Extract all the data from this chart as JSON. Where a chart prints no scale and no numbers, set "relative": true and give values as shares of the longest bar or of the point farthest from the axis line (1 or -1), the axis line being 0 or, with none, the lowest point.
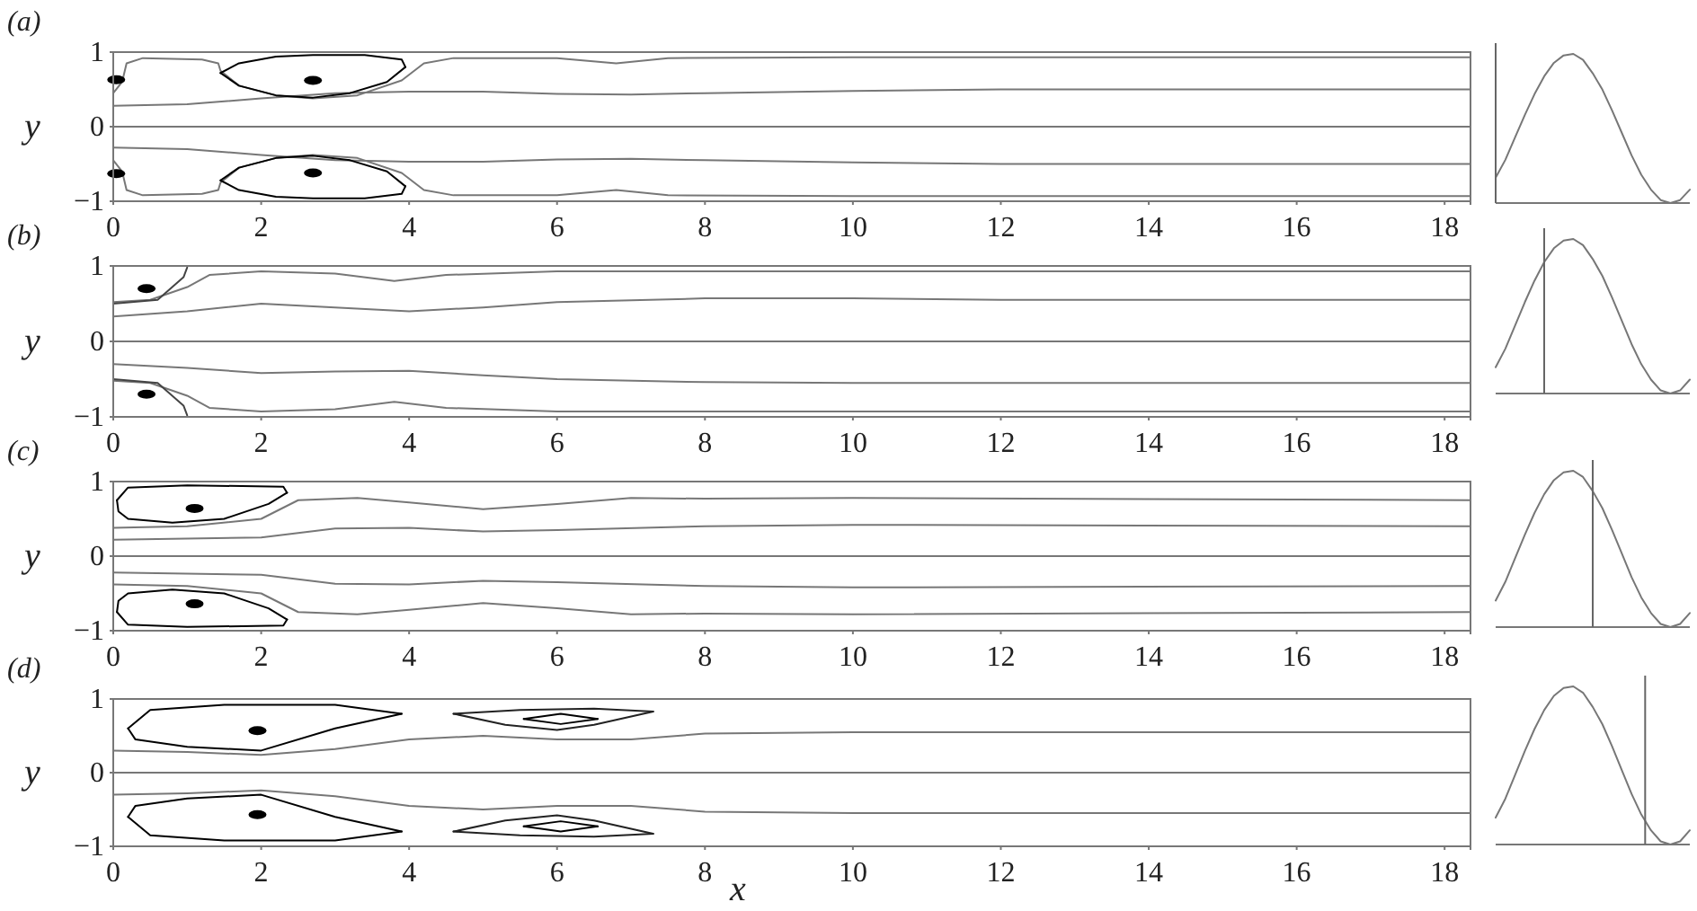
{
  "chart_data": [
    {
      "type": "line",
      "title": "(a)",
      "ylabel": "y",
      "xlim": [
        0,
        18.35
      ],
      "ylim": [
        -1,
        1
      ],
      "xticks": [
        0,
        2,
        4,
        6,
        8,
        10,
        12,
        14,
        16,
        18
      ],
      "yticks": [
        -1,
        0,
        1
      ],
      "series": [
        {
          "color": "#777777",
          "x": [
            0,
            18.35
          ],
          "values": [
            0,
            0
          ]
        },
        {
          "color": "#777777",
          "x": [
            0,
            1,
            2,
            3,
            4,
            5,
            6,
            7,
            8,
            10,
            12,
            14,
            18.35
          ],
          "values": [
            0.28,
            0.3,
            0.38,
            0.45,
            0.47,
            0.47,
            0.44,
            0.43,
            0.45,
            0.48,
            0.5,
            0.5,
            0.5
          ]
        },
        {
          "color": "#777777",
          "x": [
            0,
            1,
            2,
            3,
            4,
            5,
            6,
            7,
            8,
            10,
            12,
            14,
            18.35
          ],
          "values": [
            -0.28,
            -0.3,
            -0.38,
            -0.45,
            -0.47,
            -0.47,
            -0.44,
            -0.43,
            -0.45,
            -0.48,
            -0.5,
            -0.5,
            -0.5
          ]
        },
        {
          "color": "#777777",
          "x": [
            0,
            0.12,
            0.18,
            0.4,
            1.2,
            1.42,
            1.45,
            1.7,
            2.2,
            2.7,
            3.3,
            3.9,
            4.2,
            4.6,
            6,
            6.8,
            7.5,
            10,
            18.35
          ],
          "values": [
            0.45,
            0.6,
            0.85,
            0.92,
            0.9,
            0.85,
            0.75,
            0.55,
            0.42,
            0.38,
            0.42,
            0.62,
            0.85,
            0.92,
            0.92,
            0.85,
            0.92,
            0.93,
            0.93
          ]
        },
        {
          "color": "#777777",
          "x": [
            0,
            0.12,
            0.18,
            0.4,
            1.2,
            1.42,
            1.45,
            1.7,
            2.2,
            2.7,
            3.3,
            3.9,
            4.2,
            4.6,
            6,
            6.8,
            7.5,
            10,
            18.35
          ],
          "values": [
            -0.45,
            -0.6,
            -0.85,
            -0.92,
            -0.9,
            -0.85,
            -0.75,
            -0.55,
            -0.42,
            -0.38,
            -0.42,
            -0.62,
            -0.85,
            -0.92,
            -0.92,
            -0.85,
            -0.92,
            -0.93,
            -0.93
          ]
        },
        {
          "color": "#000000",
          "x": [
            1.45,
            1.7,
            2.2,
            2.7,
            3.4,
            3.9,
            3.95
          ],
          "values": [
            0.72,
            0.85,
            0.94,
            0.96,
            0.96,
            0.9,
            0.8
          ]
        },
        {
          "color": "#000000",
          "x": [
            1.45,
            1.7,
            2.2,
            2.7,
            3.2,
            3.7,
            3.95
          ],
          "values": [
            0.72,
            0.55,
            0.42,
            0.39,
            0.45,
            0.6,
            0.8
          ]
        },
        {
          "color": "#000000",
          "x": [
            1.45,
            1.7,
            2.2,
            2.7,
            3.4,
            3.9,
            3.95
          ],
          "values": [
            -0.72,
            -0.85,
            -0.94,
            -0.96,
            -0.96,
            -0.9,
            -0.8
          ]
        },
        {
          "color": "#000000",
          "x": [
            1.45,
            1.7,
            2.2,
            2.7,
            3.2,
            3.7,
            3.95
          ],
          "values": [
            -0.72,
            -0.55,
            -0.42,
            -0.39,
            -0.45,
            -0.6,
            -0.8
          ]
        },
        {
          "type": "scatter",
          "color": "#000000",
          "x": [
            2.7,
            2.7,
            0.04,
            0.04
          ],
          "values": [
            0.62,
            -0.62,
            0.63,
            -0.63
          ]
        }
      ]
    },
    {
      "type": "line",
      "title": "(b)",
      "ylabel": "y",
      "xlim": [
        0,
        18.35
      ],
      "ylim": [
        -1,
        1
      ],
      "xticks": [
        0,
        2,
        4,
        6,
        8,
        10,
        12,
        14,
        16,
        18
      ],
      "yticks": [
        -1,
        0,
        1
      ],
      "series": [
        {
          "color": "#777777",
          "x": [
            0,
            18.35
          ],
          "values": [
            0,
            0
          ]
        },
        {
          "color": "#777777",
          "x": [
            0,
            1,
            2,
            3,
            4,
            5,
            6,
            8,
            10,
            12,
            18.35
          ],
          "values": [
            0.33,
            0.4,
            0.5,
            0.45,
            0.4,
            0.45,
            0.52,
            0.57,
            0.57,
            0.55,
            0.55
          ]
        },
        {
          "color": "#777777",
          "x": [
            0,
            1,
            2,
            3,
            4,
            5,
            6,
            8,
            10,
            12,
            18.35
          ],
          "values": [
            -0.3,
            -0.35,
            -0.42,
            -0.4,
            -0.39,
            -0.45,
            -0.5,
            -0.54,
            -0.55,
            -0.55,
            -0.55
          ]
        },
        {
          "color": "#777777",
          "x": [
            0,
            0.5,
            1,
            1.3,
            2,
            3,
            3.8,
            4.5,
            6,
            18.35
          ],
          "values": [
            0.52,
            0.55,
            0.72,
            0.88,
            0.93,
            0.9,
            0.8,
            0.88,
            0.93,
            0.93
          ]
        },
        {
          "color": "#777777",
          "x": [
            0,
            0.5,
            1,
            1.3,
            2,
            3,
            3.8,
            4.5,
            6,
            18.35
          ],
          "values": [
            -0.52,
            -0.55,
            -0.72,
            -0.88,
            -0.93,
            -0.9,
            -0.8,
            -0.88,
            -0.93,
            -0.93
          ]
        },
        {
          "color": "#444444",
          "x": [
            0,
            0.6,
            0.95,
            1
          ],
          "values": [
            0.5,
            0.55,
            0.85,
            0.98
          ]
        },
        {
          "color": "#444444",
          "x": [
            0,
            0.6,
            0.95,
            1
          ],
          "values": [
            -0.5,
            -0.55,
            -0.85,
            -0.98
          ]
        },
        {
          "type": "scatter",
          "color": "#000000",
          "x": [
            0.45,
            0.45
          ],
          "values": [
            0.7,
            -0.7
          ]
        }
      ]
    },
    {
      "type": "line",
      "title": "(c)",
      "ylabel": "y",
      "xlim": [
        0,
        18.35
      ],
      "ylim": [
        -1,
        1
      ],
      "xticks": [
        0,
        2,
        4,
        6,
        8,
        10,
        12,
        14,
        16,
        18
      ],
      "yticks": [
        -1,
        0,
        1
      ],
      "series": [
        {
          "color": "#777777",
          "x": [
            0,
            18.35
          ],
          "values": [
            0,
            0
          ]
        },
        {
          "color": "#777777",
          "x": [
            0,
            2,
            3,
            4,
            5,
            6,
            8,
            10,
            18.35
          ],
          "values": [
            0.22,
            0.25,
            0.37,
            0.38,
            0.33,
            0.35,
            0.4,
            0.42,
            0.4
          ]
        },
        {
          "color": "#777777",
          "x": [
            0,
            2,
            3,
            4,
            5,
            6,
            8,
            10,
            18.35
          ],
          "values": [
            -0.22,
            -0.25,
            -0.37,
            -0.38,
            -0.33,
            -0.35,
            -0.4,
            -0.42,
            -0.4
          ]
        },
        {
          "color": "#777777",
          "x": [
            0,
            1,
            2,
            2.5,
            3.3,
            4,
            5,
            6,
            7,
            8,
            10,
            18.35
          ],
          "values": [
            0.38,
            0.4,
            0.5,
            0.75,
            0.78,
            0.72,
            0.63,
            0.7,
            0.78,
            0.77,
            0.78,
            0.75
          ]
        },
        {
          "color": "#777777",
          "x": [
            0,
            1,
            2,
            2.5,
            3.3,
            4,
            5,
            6,
            7,
            8,
            10,
            18.35
          ],
          "values": [
            -0.38,
            -0.4,
            -0.5,
            -0.75,
            -0.78,
            -0.72,
            -0.63,
            -0.7,
            -0.78,
            -0.77,
            -0.78,
            -0.75
          ]
        },
        {
          "color": "#000000",
          "x": [
            0.05,
            0.2,
            1,
            2.3,
            2.35
          ],
          "values": [
            0.75,
            0.92,
            0.95,
            0.93,
            0.85
          ]
        },
        {
          "color": "#000000",
          "x": [
            0.05,
            0.07,
            0.2,
            0.8,
            1.5,
            2.1,
            2.35
          ],
          "values": [
            0.75,
            0.6,
            0.5,
            0.45,
            0.5,
            0.7,
            0.85
          ]
        },
        {
          "color": "#000000",
          "x": [
            0.05,
            0.2,
            1,
            2.3,
            2.35
          ],
          "values": [
            -0.75,
            -0.92,
            -0.95,
            -0.93,
            -0.85
          ]
        },
        {
          "color": "#000000",
          "x": [
            0.05,
            0.07,
            0.2,
            0.8,
            1.5,
            2.1,
            2.35
          ],
          "values": [
            -0.75,
            -0.6,
            -0.5,
            -0.45,
            -0.5,
            -0.7,
            -0.85
          ]
        },
        {
          "type": "scatter",
          "color": "#000000",
          "x": [
            1.1,
            1.1
          ],
          "values": [
            0.64,
            -0.64
          ]
        }
      ]
    },
    {
      "type": "line",
      "title": "(d)",
      "xlabel": "x",
      "ylabel": "y",
      "xlim": [
        0,
        18.35
      ],
      "ylim": [
        -1,
        1
      ],
      "xticks": [
        0,
        2,
        4,
        6,
        8,
        10,
        12,
        14,
        16,
        18
      ],
      "yticks": [
        -1,
        0,
        1
      ],
      "series": [
        {
          "color": "#777777",
          "x": [
            0,
            18.35
          ],
          "values": [
            0,
            0
          ]
        },
        {
          "color": "#777777",
          "x": [
            0,
            1,
            2,
            3,
            4,
            5,
            6,
            7,
            8,
            10,
            18.35
          ],
          "values": [
            0.3,
            0.28,
            0.24,
            0.32,
            0.45,
            0.5,
            0.45,
            0.45,
            0.53,
            0.55,
            0.55
          ]
        },
        {
          "color": "#777777",
          "x": [
            0,
            1,
            2,
            3,
            4,
            5,
            6,
            7,
            8,
            10,
            18.35
          ],
          "values": [
            -0.3,
            -0.28,
            -0.24,
            -0.32,
            -0.45,
            -0.5,
            -0.45,
            -0.45,
            -0.53,
            -0.55,
            -0.55
          ]
        },
        {
          "color": "#000000",
          "x": [
            0.2,
            0.5,
            1.5,
            3,
            3.9
          ],
          "values": [
            0.6,
            0.85,
            0.92,
            0.92,
            0.8
          ]
        },
        {
          "color": "#000000",
          "x": [
            0.2,
            0.3,
            1,
            2,
            3,
            3.9
          ],
          "values": [
            0.6,
            0.45,
            0.35,
            0.3,
            0.6,
            0.8
          ]
        },
        {
          "color": "#000000",
          "x": [
            0.2,
            0.5,
            1.5,
            3,
            3.9
          ],
          "values": [
            -0.6,
            -0.85,
            -0.92,
            -0.92,
            -0.8
          ]
        },
        {
          "color": "#000000",
          "x": [
            0.2,
            0.3,
            1,
            2,
            3,
            3.9
          ],
          "values": [
            -0.6,
            -0.45,
            -0.35,
            -0.3,
            -0.6,
            -0.8
          ]
        },
        {
          "type": "scatter",
          "color": "#000000",
          "x": [
            1.95,
            1.95
          ],
          "values": [
            0.57,
            -0.57
          ]
        },
        {
          "color": "#222222",
          "x": [
            4.6,
            5.5,
            6.5,
            7.3
          ],
          "values": [
            0.8,
            0.85,
            0.87,
            0.83
          ]
        },
        {
          "color": "#222222",
          "x": [
            4.6,
            5.3,
            6,
            6.5,
            7.3
          ],
          "values": [
            0.8,
            0.65,
            0.58,
            0.65,
            0.83
          ]
        },
        {
          "color": "#222222",
          "x": [
            4.6,
            5.5,
            6.5,
            7.3
          ],
          "values": [
            -0.8,
            -0.85,
            -0.87,
            -0.83
          ]
        },
        {
          "color": "#222222",
          "x": [
            4.6,
            5.3,
            6,
            6.5,
            7.3
          ],
          "values": [
            -0.8,
            -0.65,
            -0.58,
            -0.65,
            -0.83
          ]
        },
        {
          "color": "#000000",
          "x": [
            5.55,
            6.05,
            6.55
          ],
          "values": [
            0.73,
            0.8,
            0.73
          ]
        },
        {
          "color": "#000000",
          "x": [
            5.55,
            6.05,
            6.55
          ],
          "values": [
            0.73,
            0.66,
            0.73
          ]
        },
        {
          "color": "#000000",
          "x": [
            5.55,
            6.05,
            6.55
          ],
          "values": [
            -0.73,
            -0.66,
            -0.73
          ]
        },
        {
          "color": "#000000",
          "x": [
            5.55,
            6.05,
            6.55
          ],
          "values": [
            -0.73,
            -0.8,
            -0.73
          ]
        }
      ]
    },
    {
      "type": "line",
      "relative": true,
      "tick_labels": false,
      "categories": [
        null,
        null,
        null,
        null,
        null,
        null,
        null,
        null,
        null,
        null,
        null,
        null,
        null,
        null,
        null,
        null,
        null,
        null,
        null,
        null,
        null
      ],
      "series": [
        {
          "color": "#777777",
          "values": [
            0.17,
            0.29,
            0.44,
            0.59,
            0.73,
            0.85,
            0.94,
            0.99,
            1,
            0.96,
            0.87,
            0.76,
            0.62,
            0.47,
            0.32,
            0.19,
            0.09,
            0.02,
            0,
            0.02,
            0.09
          ]
        }
      ]
    },
    {
      "type": "line",
      "relative": true,
      "tick_labels": false,
      "categories": [
        null,
        null,
        null,
        null,
        null,
        null,
        null,
        null,
        null,
        null,
        null,
        null,
        null,
        null,
        null,
        null,
        null,
        null,
        null,
        null,
        null
      ],
      "series": [
        {
          "color": "#777777",
          "values": [
            0.17,
            0.29,
            0.44,
            0.59,
            0.73,
            0.85,
            0.94,
            0.99,
            1,
            0.96,
            0.87,
            0.76,
            0.62,
            0.47,
            0.32,
            0.19,
            0.09,
            0.02,
            0,
            0.02,
            0.09
          ]
        }
      ]
    },
    {
      "type": "line",
      "relative": true,
      "tick_labels": false,
      "categories": [
        null,
        null,
        null,
        null,
        null,
        null,
        null,
        null,
        null,
        null,
        null,
        null,
        null,
        null,
        null,
        null,
        null,
        null,
        null,
        null,
        null
      ],
      "series": [
        {
          "color": "#777777",
          "values": [
            0.17,
            0.29,
            0.44,
            0.59,
            0.73,
            0.85,
            0.94,
            0.99,
            1,
            0.96,
            0.87,
            0.76,
            0.62,
            0.47,
            0.32,
            0.19,
            0.09,
            0.02,
            0,
            0.02,
            0.09
          ]
        }
      ]
    },
    {
      "type": "line",
      "relative": true,
      "tick_labels": false,
      "categories": [
        null,
        null,
        null,
        null,
        null,
        null,
        null,
        null,
        null,
        null,
        null,
        null,
        null,
        null,
        null,
        null,
        null,
        null,
        null,
        null,
        null
      ],
      "series": [
        {
          "color": "#777777",
          "values": [
            0.17,
            0.29,
            0.44,
            0.59,
            0.73,
            0.85,
            0.94,
            0.99,
            1,
            0.96,
            0.87,
            0.76,
            0.62,
            0.47,
            0.32,
            0.19,
            0.09,
            0.02,
            0,
            0.02,
            0.09
          ]
        }
      ]
    }
  ]
}
